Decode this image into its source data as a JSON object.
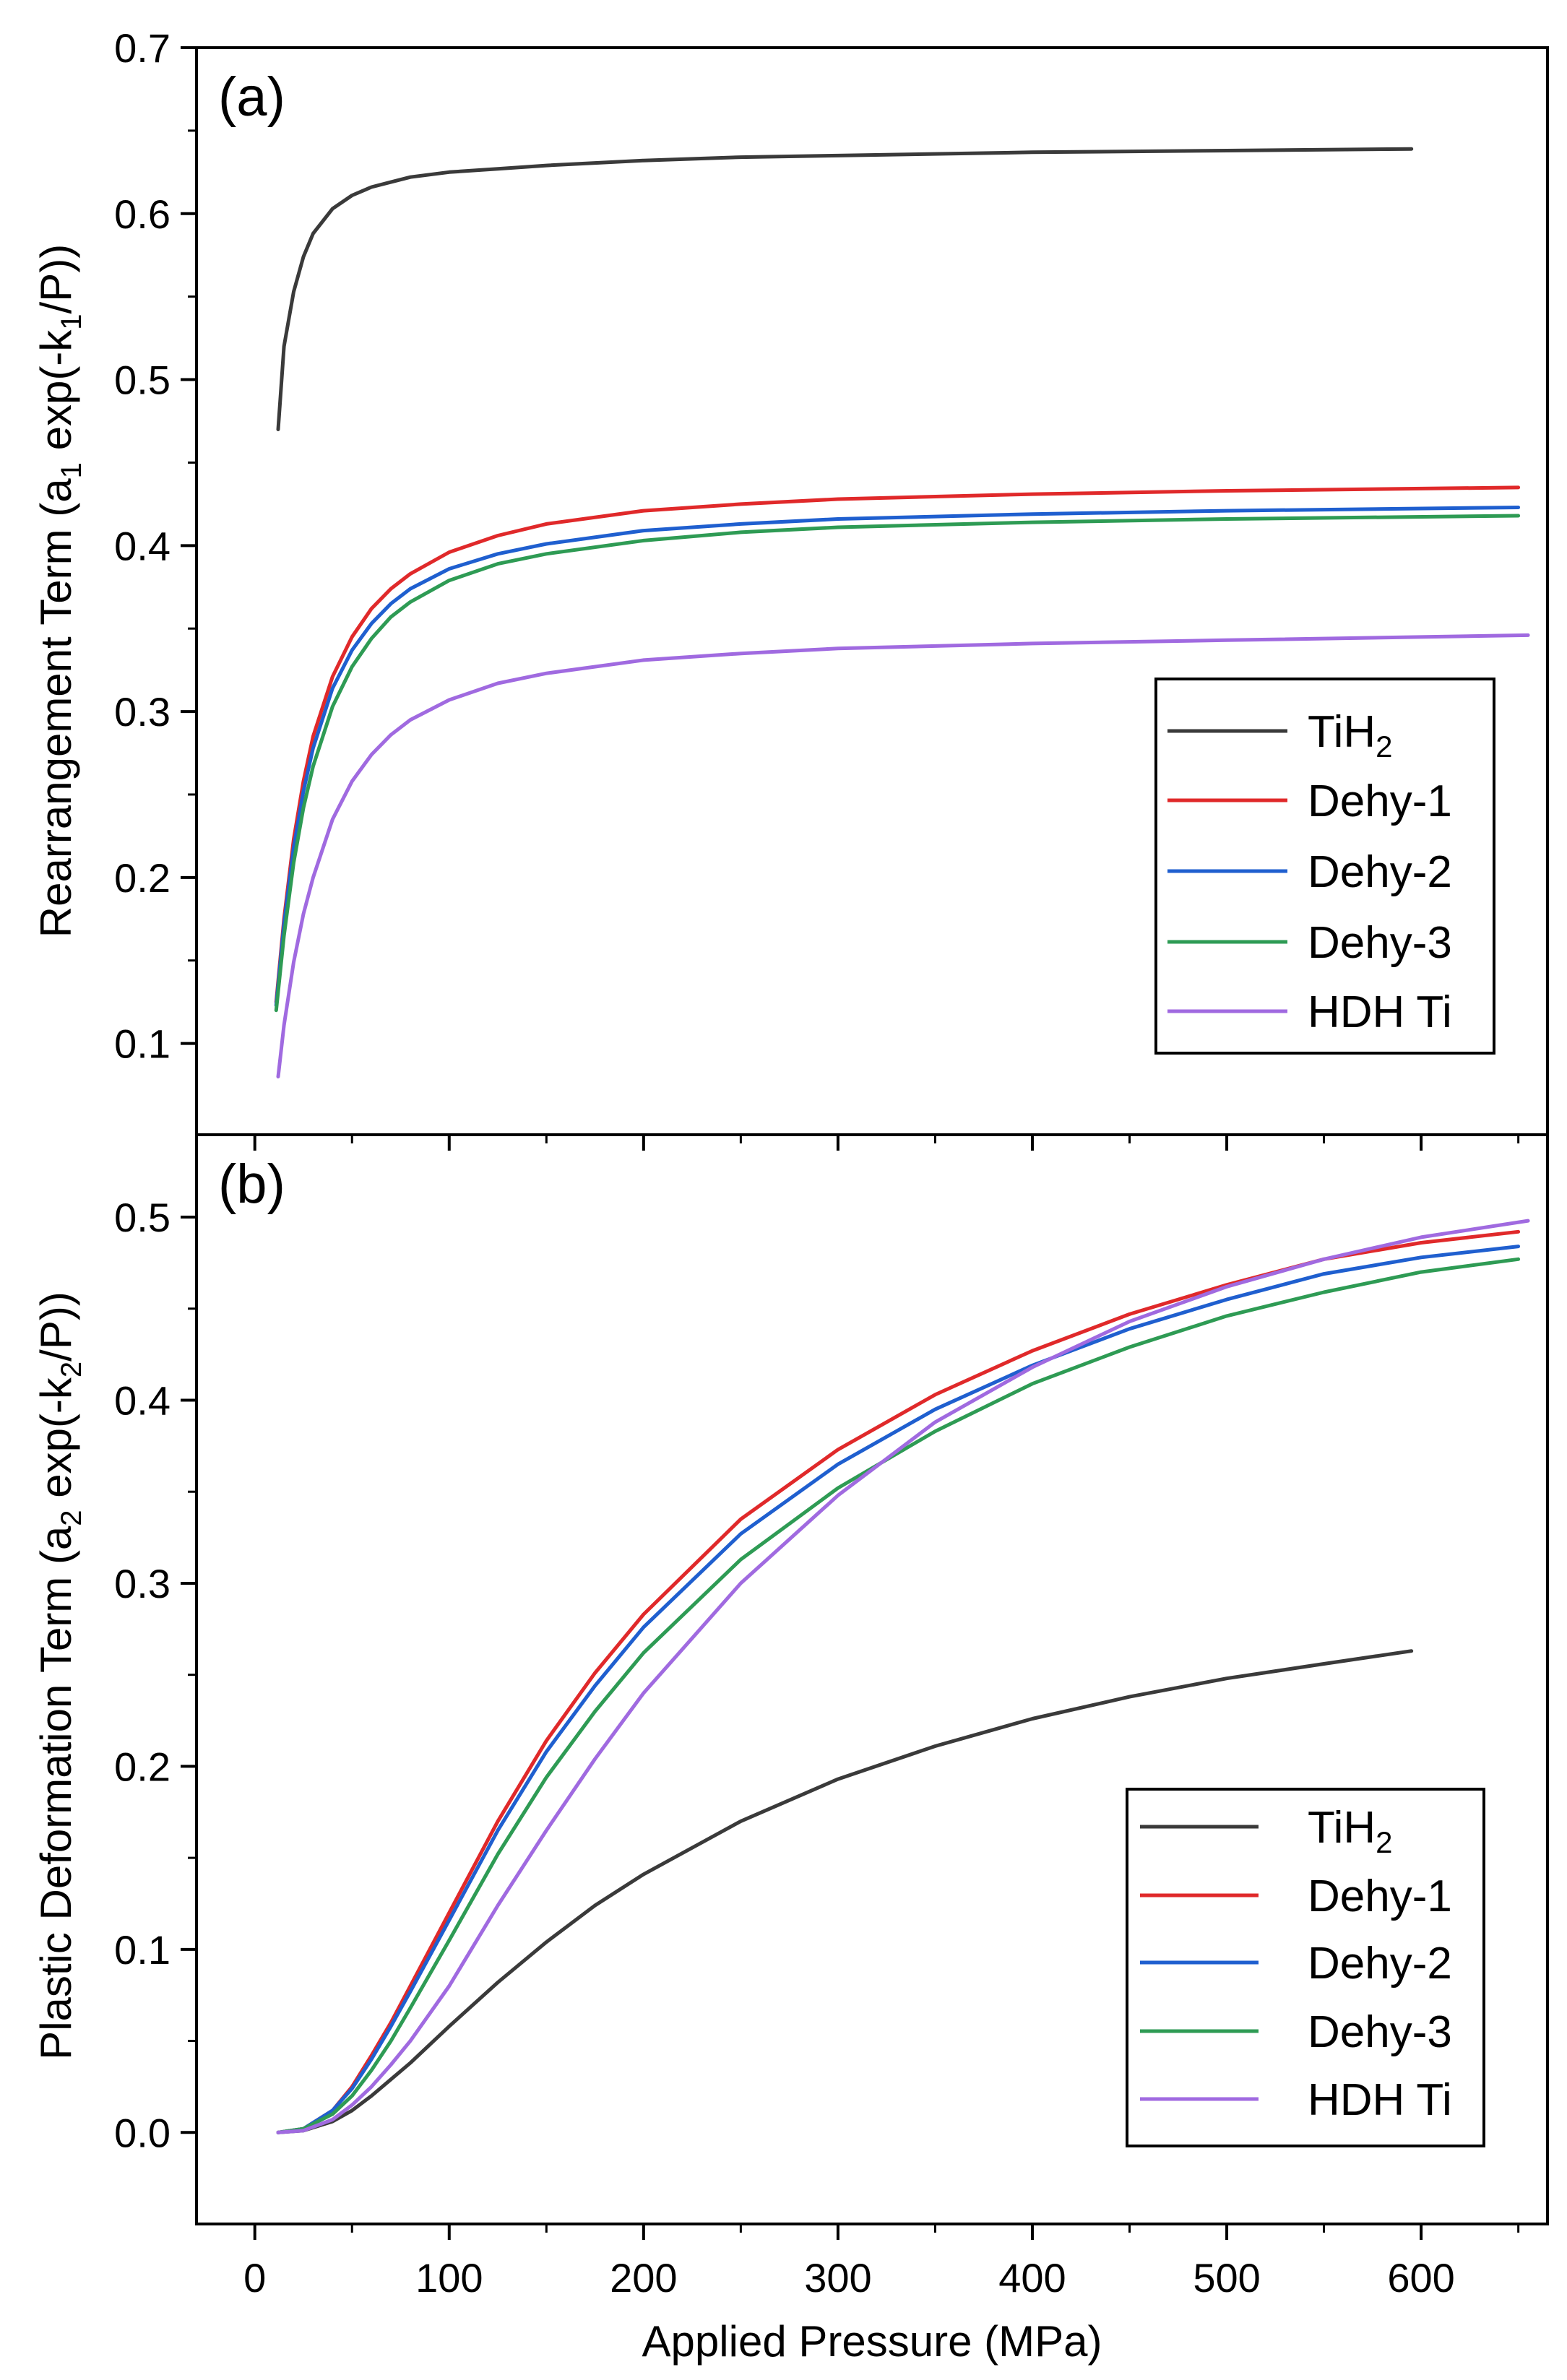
{
  "chart_data": [
    {
      "panel": "(a)",
      "type": "line",
      "ylabel_parts": [
        "Rearrangement Term (a",
        "1",
        " exp(-k",
        "1",
        "/P))"
      ],
      "xlim": [
        -30,
        665
      ],
      "ylim": [
        0.045,
        0.7
      ],
      "yticks": [
        0.1,
        0.2,
        0.3,
        0.4,
        0.5,
        0.6,
        0.7
      ],
      "ytick_labels": [
        "0.1",
        "0.2",
        "0.3",
        "0.4",
        "0.5",
        "0.6",
        "0.7"
      ],
      "legend": {
        "position": "bottom-right"
      },
      "series": [
        {
          "name": "TiH2",
          "name_parts": [
            "TiH",
            "2"
          ],
          "color": "#3a3a3a",
          "points": [
            [
              12,
              0.47
            ],
            [
              15,
              0.52
            ],
            [
              20,
              0.553
            ],
            [
              25,
              0.574
            ],
            [
              30,
              0.588
            ],
            [
              40,
              0.603
            ],
            [
              50,
              0.611
            ],
            [
              60,
              0.616
            ],
            [
              70,
              0.619
            ],
            [
              80,
              0.622
            ],
            [
              100,
              0.625
            ],
            [
              125,
              0.627
            ],
            [
              150,
              0.629
            ],
            [
              200,
              0.632
            ],
            [
              250,
              0.634
            ],
            [
              300,
              0.635
            ],
            [
              400,
              0.637
            ],
            [
              500,
              0.638
            ],
            [
              595,
              0.639
            ]
          ]
        },
        {
          "name": "Dehy-1",
          "color": "#e0292a",
          "points": [
            [
              11,
              0.125
            ],
            [
              15,
              0.175
            ],
            [
              20,
              0.223
            ],
            [
              25,
              0.258
            ],
            [
              30,
              0.285
            ],
            [
              40,
              0.321
            ],
            [
              50,
              0.345
            ],
            [
              60,
              0.362
            ],
            [
              70,
              0.374
            ],
            [
              80,
              0.383
            ],
            [
              100,
              0.396
            ],
            [
              125,
              0.406
            ],
            [
              150,
              0.413
            ],
            [
              200,
              0.421
            ],
            [
              250,
              0.425
            ],
            [
              300,
              0.428
            ],
            [
              400,
              0.431
            ],
            [
              500,
              0.433
            ],
            [
              650,
              0.435
            ]
          ]
        },
        {
          "name": "Dehy-2",
          "color": "#1f5fcf",
          "points": [
            [
              11,
              0.123
            ],
            [
              15,
              0.172
            ],
            [
              20,
              0.218
            ],
            [
              25,
              0.252
            ],
            [
              30,
              0.278
            ],
            [
              40,
              0.314
            ],
            [
              50,
              0.337
            ],
            [
              60,
              0.353
            ],
            [
              70,
              0.365
            ],
            [
              80,
              0.374
            ],
            [
              100,
              0.386
            ],
            [
              125,
              0.395
            ],
            [
              150,
              0.401
            ],
            [
              200,
              0.409
            ],
            [
              250,
              0.413
            ],
            [
              300,
              0.416
            ],
            [
              400,
              0.419
            ],
            [
              500,
              0.421
            ],
            [
              650,
              0.423
            ]
          ]
        },
        {
          "name": "Dehy-3",
          "color": "#2e9b54",
          "points": [
            [
              11,
              0.12
            ],
            [
              15,
              0.165
            ],
            [
              20,
              0.209
            ],
            [
              25,
              0.242
            ],
            [
              30,
              0.267
            ],
            [
              40,
              0.303
            ],
            [
              50,
              0.327
            ],
            [
              60,
              0.344
            ],
            [
              70,
              0.357
            ],
            [
              80,
              0.366
            ],
            [
              100,
              0.379
            ],
            [
              125,
              0.389
            ],
            [
              150,
              0.395
            ],
            [
              200,
              0.403
            ],
            [
              250,
              0.408
            ],
            [
              300,
              0.411
            ],
            [
              400,
              0.414
            ],
            [
              500,
              0.416
            ],
            [
              650,
              0.418
            ]
          ]
        },
        {
          "name": "HDH Ti",
          "color": "#a06ae0",
          "points": [
            [
              12,
              0.08
            ],
            [
              15,
              0.111
            ],
            [
              20,
              0.149
            ],
            [
              25,
              0.178
            ],
            [
              30,
              0.2
            ],
            [
              40,
              0.235
            ],
            [
              50,
              0.258
            ],
            [
              60,
              0.274
            ],
            [
              70,
              0.286
            ],
            [
              80,
              0.295
            ],
            [
              100,
              0.307
            ],
            [
              125,
              0.317
            ],
            [
              150,
              0.323
            ],
            [
              200,
              0.331
            ],
            [
              250,
              0.335
            ],
            [
              300,
              0.338
            ],
            [
              400,
              0.341
            ],
            [
              500,
              0.343
            ],
            [
              655,
              0.346
            ]
          ]
        }
      ]
    },
    {
      "panel": "(b)",
      "type": "line",
      "xlabel": "Applied Pressure (MPa)",
      "ylabel_parts": [
        "Plastic Deformation Term (a",
        "2",
        " exp(-k",
        "2",
        "/P))"
      ],
      "xlim": [
        -30,
        665
      ],
      "ylim": [
        -0.05,
        0.545
      ],
      "xticks": [
        0,
        100,
        200,
        300,
        400,
        500,
        600
      ],
      "xtick_labels": [
        "0",
        "100",
        "200",
        "300",
        "400",
        "500",
        "600"
      ],
      "yticks": [
        0.0,
        0.1,
        0.2,
        0.3,
        0.4,
        0.5
      ],
      "ytick_labels": [
        "0.0",
        "0.1",
        "0.2",
        "0.3",
        "0.4",
        "0.5"
      ],
      "legend": {
        "position": "bottom-right"
      },
      "series": [
        {
          "name": "TiH2",
          "name_parts": [
            "TiH",
            "2"
          ],
          "color": "#3a3a3a",
          "points": [
            [
              12,
              0.0
            ],
            [
              25,
              0.001
            ],
            [
              40,
              0.006
            ],
            [
              50,
              0.012
            ],
            [
              60,
              0.02
            ],
            [
              70,
              0.029
            ],
            [
              80,
              0.038
            ],
            [
              100,
              0.058
            ],
            [
              125,
              0.082
            ],
            [
              150,
              0.104
            ],
            [
              175,
              0.124
            ],
            [
              200,
              0.141
            ],
            [
              250,
              0.17
            ],
            [
              300,
              0.193
            ],
            [
              350,
              0.211
            ],
            [
              400,
              0.226
            ],
            [
              450,
              0.238
            ],
            [
              500,
              0.248
            ],
            [
              550,
              0.256
            ],
            [
              595,
              0.263
            ]
          ]
        },
        {
          "name": "Dehy-1",
          "color": "#e0292a",
          "points": [
            [
              12,
              0.0
            ],
            [
              25,
              0.002
            ],
            [
              40,
              0.012
            ],
            [
              50,
              0.025
            ],
            [
              60,
              0.042
            ],
            [
              70,
              0.06
            ],
            [
              80,
              0.08
            ],
            [
              100,
              0.12
            ],
            [
              125,
              0.17
            ],
            [
              150,
              0.214
            ],
            [
              175,
              0.251
            ],
            [
              200,
              0.283
            ],
            [
              250,
              0.335
            ],
            [
              300,
              0.373
            ],
            [
              350,
              0.403
            ],
            [
              400,
              0.427
            ],
            [
              450,
              0.447
            ],
            [
              500,
              0.463
            ],
            [
              550,
              0.477
            ],
            [
              600,
              0.486
            ],
            [
              650,
              0.492
            ]
          ]
        },
        {
          "name": "Dehy-2",
          "color": "#1f5fcf",
          "points": [
            [
              12,
              0.0
            ],
            [
              25,
              0.002
            ],
            [
              40,
              0.012
            ],
            [
              50,
              0.024
            ],
            [
              60,
              0.04
            ],
            [
              70,
              0.058
            ],
            [
              80,
              0.077
            ],
            [
              100,
              0.116
            ],
            [
              125,
              0.165
            ],
            [
              150,
              0.208
            ],
            [
              175,
              0.244
            ],
            [
              200,
              0.276
            ],
            [
              250,
              0.327
            ],
            [
              300,
              0.365
            ],
            [
              350,
              0.395
            ],
            [
              400,
              0.419
            ],
            [
              450,
              0.439
            ],
            [
              500,
              0.455
            ],
            [
              550,
              0.469
            ],
            [
              600,
              0.478
            ],
            [
              650,
              0.484
            ]
          ]
        },
        {
          "name": "Dehy-3",
          "color": "#2e9b54",
          "points": [
            [
              12,
              0.0
            ],
            [
              25,
              0.002
            ],
            [
              40,
              0.01
            ],
            [
              50,
              0.02
            ],
            [
              60,
              0.034
            ],
            [
              70,
              0.05
            ],
            [
              80,
              0.068
            ],
            [
              100,
              0.105
            ],
            [
              125,
              0.152
            ],
            [
              150,
              0.194
            ],
            [
              175,
              0.23
            ],
            [
              200,
              0.262
            ],
            [
              250,
              0.313
            ],
            [
              300,
              0.352
            ],
            [
              350,
              0.383
            ],
            [
              400,
              0.409
            ],
            [
              450,
              0.429
            ],
            [
              500,
              0.446
            ],
            [
              550,
              0.459
            ],
            [
              600,
              0.47
            ],
            [
              650,
              0.477
            ]
          ]
        },
        {
          "name": "HDH Ti",
          "color": "#a06ae0",
          "points": [
            [
              12,
              0.0
            ],
            [
              25,
              0.001
            ],
            [
              40,
              0.007
            ],
            [
              50,
              0.015
            ],
            [
              60,
              0.025
            ],
            [
              70,
              0.037
            ],
            [
              80,
              0.05
            ],
            [
              100,
              0.08
            ],
            [
              125,
              0.124
            ],
            [
              150,
              0.165
            ],
            [
              175,
              0.204
            ],
            [
              200,
              0.24
            ],
            [
              250,
              0.3
            ],
            [
              300,
              0.348
            ],
            [
              350,
              0.388
            ],
            [
              400,
              0.418
            ],
            [
              450,
              0.443
            ],
            [
              500,
              0.462
            ],
            [
              550,
              0.477
            ],
            [
              600,
              0.489
            ],
            [
              655,
              0.498
            ]
          ]
        }
      ]
    }
  ]
}
